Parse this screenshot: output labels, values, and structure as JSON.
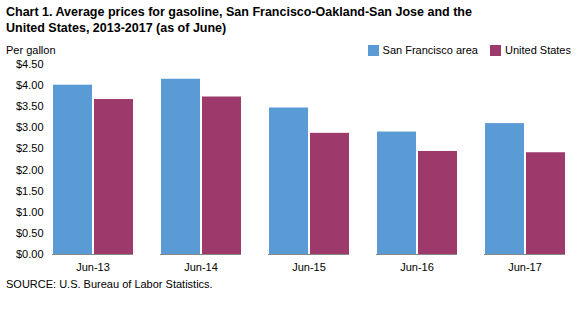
{
  "chart_data": {
    "type": "bar",
    "title": "Chart 1. Average prices for gasoline, San Francisco-Oakland-San Jose  and the\nUnited States, 2013-2017  (as of June)",
    "ylabel": "Per gallon",
    "source": "SOURCE: U.S. Bureau of Labor Statistics.",
    "categories": [
      "Jun-13",
      "Jun-14",
      "Jun-15",
      "Jun-16",
      "Jun-17"
    ],
    "series": [
      {
        "name": "San Francisco area",
        "color": "#5B9BD5",
        "values": [
          4.01,
          4.15,
          3.47,
          2.9,
          3.1
        ]
      },
      {
        "name": "United States",
        "color": "#9E3A6B",
        "values": [
          3.67,
          3.73,
          2.87,
          2.44,
          2.41
        ]
      }
    ],
    "ylim": [
      0,
      4.5
    ],
    "yticks": [
      {
        "value": 0.0,
        "label": "$0.00"
      },
      {
        "value": 0.5,
        "label": "$0.50"
      },
      {
        "value": 1.0,
        "label": "$1.00"
      },
      {
        "value": 1.5,
        "label": "$1.50"
      },
      {
        "value": 2.0,
        "label": "$2.00"
      },
      {
        "value": 2.5,
        "label": "$2.50"
      },
      {
        "value": 3.0,
        "label": "$3.00"
      },
      {
        "value": 3.5,
        "label": "$3.50"
      },
      {
        "value": 4.0,
        "label": "$4.00"
      },
      {
        "value": 4.5,
        "label": "$4.50"
      }
    ],
    "legend": "upper right",
    "grid": false
  }
}
